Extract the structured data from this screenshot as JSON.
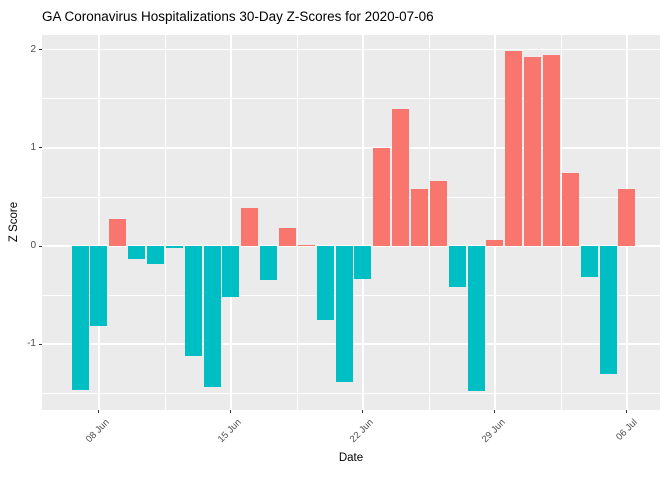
{
  "chart_data": {
    "type": "bar",
    "title": "GA Coronavirus Hospitalizations 30-Day Z-Scores for 2020-07-06",
    "xlabel": "Date",
    "ylabel": "Z Score",
    "x": [
      "07 Jun",
      "08 Jun",
      "09 Jun",
      "10 Jun",
      "11 Jun",
      "12 Jun",
      "13 Jun",
      "14 Jun",
      "15 Jun",
      "16 Jun",
      "17 Jun",
      "18 Jun",
      "19 Jun",
      "20 Jun",
      "21 Jun",
      "22 Jun",
      "23 Jun",
      "24 Jun",
      "25 Jun",
      "26 Jun",
      "27 Jun",
      "28 Jun",
      "29 Jun",
      "30 Jun",
      "01 Jul",
      "02 Jul",
      "03 Jul",
      "04 Jul",
      "05 Jul",
      "06 Jul"
    ],
    "values": [
      -1.47,
      -0.81,
      0.28,
      -0.13,
      -0.18,
      -0.02,
      -1.12,
      -1.44,
      -0.52,
      0.39,
      -0.35,
      0.18,
      0.01,
      -0.75,
      -1.39,
      -0.34,
      1.0,
      1.4,
      0.58,
      0.66,
      -0.42,
      -1.48,
      0.06,
      1.99,
      1.93,
      1.95,
      0.74,
      -0.32,
      -1.3,
      0.58
    ],
    "x_tick_labels": [
      "08 Jun",
      "15 Jun",
      "22 Jun",
      "29 Jun",
      "06 Jul"
    ],
    "x_tick_days": [
      2,
      9,
      16,
      23,
      30
    ],
    "x_minor_days": [
      5.5,
      12.5,
      19.5,
      26.5
    ],
    "y_ticks": [
      -1,
      0,
      1,
      2
    ],
    "y_tick_labels": [
      "-1",
      "0",
      "1",
      "2"
    ],
    "y_minor_ticks": [
      -1.5,
      -0.5,
      0.5,
      1.5
    ],
    "ylim": [
      -1.67,
      2.15
    ],
    "grid": true,
    "legend": "none",
    "colors": {
      "positive": "#F8766D",
      "negative": "#00BFC4",
      "panel_background": "#EBEBEB",
      "gridline": "#FFFFFF",
      "axis_text": "#4D4D4D",
      "title_text": "#000000"
    }
  }
}
